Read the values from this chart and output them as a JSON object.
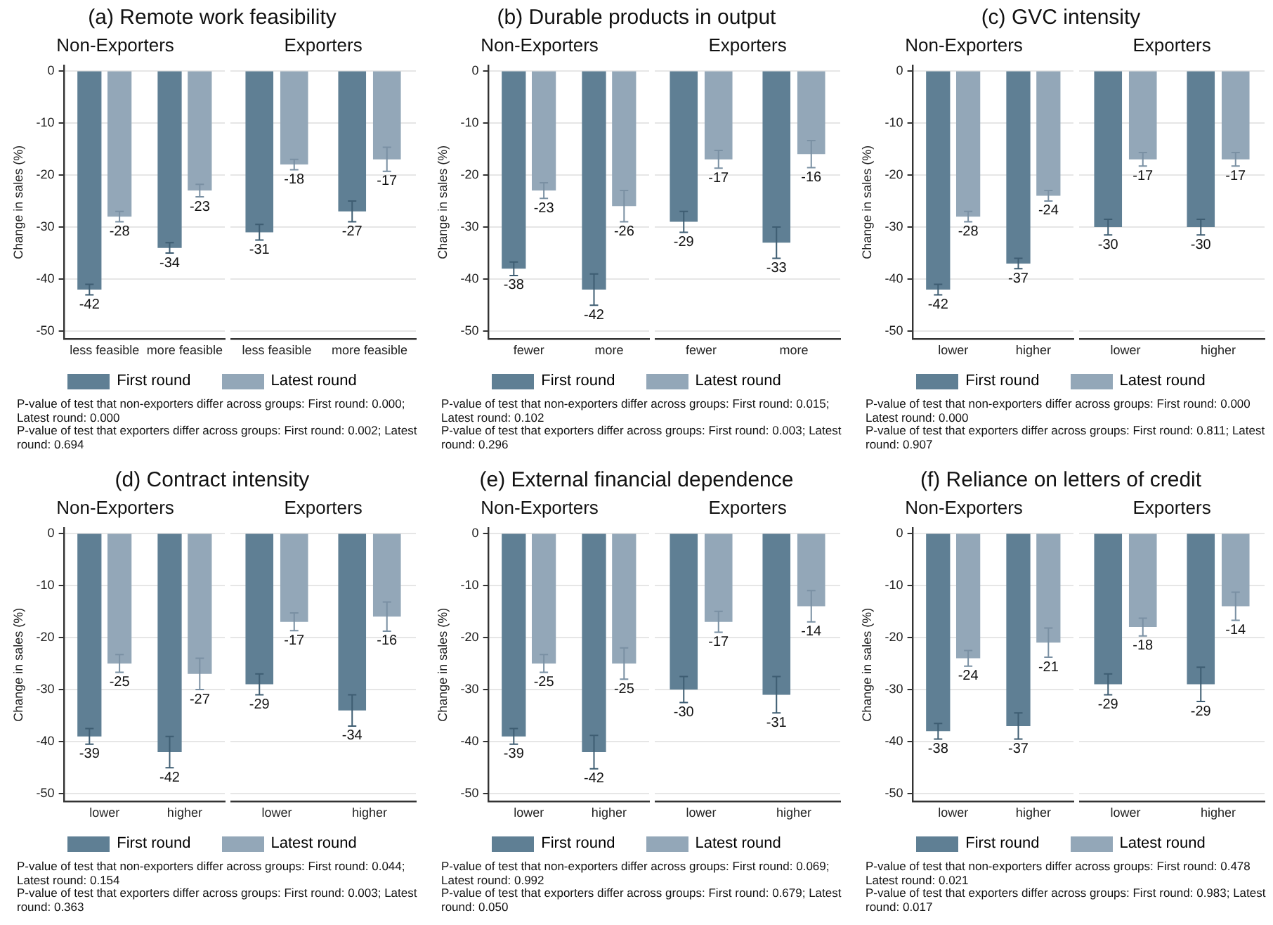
{
  "chart_data": [
    {
      "type": "bar",
      "title": "(a) Remote work feasibility",
      "subtitle": "Non-Exporters",
      "ylabel": "Change in sales (%)",
      "categories": [
        "less feasible",
        "more feasible"
      ],
      "ylim": [
        -51.5,
        1
      ],
      "yticks": [
        0,
        -10,
        -20,
        -30,
        -40,
        -50
      ],
      "grid": "y",
      "legend": "bottom",
      "data_labels": true,
      "series": [
        {
          "name": "First round",
          "color": "#5f7f94",
          "values": [
            -42,
            -34
          ],
          "errors": [
            1,
            1
          ]
        },
        {
          "name": "Latest round",
          "color": "#93a7b8",
          "values": [
            -28,
            -23
          ],
          "errors": [
            1,
            1.2
          ]
        }
      ],
      "annotations": [
        "P-value of test that non-exporters differ across groups: First round: 0.000; Latest round: 0.000",
        "P-value of test that exporters differ across groups: First round: 0.002; Latest round: 0.694"
      ]
    },
    {
      "type": "bar",
      "subtitle": "Exporters",
      "categories": [
        "less feasible",
        "more feasible"
      ],
      "yticks": [
        0,
        -10,
        -20,
        -30,
        -40,
        -50
      ],
      "grid": "y",
      "tick_labels": "x",
      "data_labels": true,
      "series": [
        {
          "color": "#5f7f94",
          "values": [
            -31,
            -27
          ],
          "errors": [
            1.5,
            2
          ]
        },
        {
          "color": "#93a7b8",
          "values": [
            -18,
            -17
          ],
          "errors": [
            1,
            2.3
          ]
        }
      ]
    },
    {
      "type": "bar",
      "title": "(b) Durable products in output",
      "subtitle": "Non-Exporters",
      "ylabel": "Change in sales (%)",
      "categories": [
        "fewer",
        "more"
      ],
      "ylim": [
        -51.5,
        1
      ],
      "yticks": [
        0,
        -10,
        -20,
        -30,
        -40,
        -50
      ],
      "grid": "y",
      "legend": "bottom",
      "data_labels": true,
      "series": [
        {
          "name": "First round",
          "color": "#5f7f94",
          "values": [
            -38,
            -42
          ],
          "errors": [
            1.3,
            3
          ]
        },
        {
          "name": "Latest round",
          "color": "#93a7b8",
          "values": [
            -23,
            -26
          ],
          "errors": [
            1.5,
            3
          ]
        }
      ],
      "annotations": [
        "P-value of test that non-exporters differ across groups: First round: 0.015; Latest round: 0.102",
        "P-value of test that exporters differ across groups: First round: 0.003; Latest round: 0.296"
      ]
    },
    {
      "type": "bar",
      "subtitle": "Exporters",
      "categories": [
        "fewer",
        "more"
      ],
      "yticks": [
        0,
        -10,
        -20,
        -30,
        -40,
        -50
      ],
      "grid": "y",
      "tick_labels": "x",
      "data_labels": true,
      "series": [
        {
          "color": "#5f7f94",
          "values": [
            -29,
            -33
          ],
          "errors": [
            2,
            3
          ]
        },
        {
          "color": "#93a7b8",
          "values": [
            -17,
            -16
          ],
          "errors": [
            1.7,
            2.6
          ]
        }
      ]
    },
    {
      "type": "bar",
      "title": "(c) GVC intensity",
      "subtitle": "Non-Exporters",
      "ylabel": "Change in sales (%)",
      "categories": [
        "lower",
        "higher"
      ],
      "ylim": [
        -51.5,
        1
      ],
      "yticks": [
        0,
        -10,
        -20,
        -30,
        -40,
        -50
      ],
      "grid": "y",
      "legend": "bottom",
      "data_labels": true,
      "series": [
        {
          "name": "First round",
          "color": "#5f7f94",
          "values": [
            -42,
            -37
          ],
          "errors": [
            1,
            1
          ]
        },
        {
          "name": "Latest round",
          "color": "#93a7b8",
          "values": [
            -28,
            -24
          ],
          "errors": [
            1,
            1
          ]
        }
      ],
      "annotations": [
        "P-value of test that non-exporters differ across groups: First round: 0.000 Latest round: 0.000",
        "P-value of test that exporters differ across groups: First round: 0.811; Latest round: 0.907"
      ]
    },
    {
      "type": "bar",
      "subtitle": "Exporters",
      "categories": [
        "lower",
        "higher"
      ],
      "yticks": [
        0,
        -10,
        -20,
        -30,
        -40,
        -50
      ],
      "grid": "y",
      "tick_labels": "x",
      "data_labels": true,
      "series": [
        {
          "color": "#5f7f94",
          "values": [
            -30,
            -30
          ],
          "errors": [
            1.5,
            1.5
          ]
        },
        {
          "color": "#93a7b8",
          "values": [
            -17,
            -17
          ],
          "errors": [
            1.3,
            1.3
          ]
        }
      ]
    },
    {
      "type": "bar",
      "title": "(d) Contract intensity",
      "subtitle": "Non-Exporters",
      "ylabel": "Change in sales (%)",
      "categories": [
        "lower",
        "higher"
      ],
      "ylim": [
        -51.5,
        1
      ],
      "yticks": [
        0,
        -10,
        -20,
        -30,
        -40,
        -50
      ],
      "grid": "y",
      "legend": "bottom",
      "data_labels": true,
      "series": [
        {
          "name": "First round",
          "color": "#5f7f94",
          "values": [
            -39,
            -42
          ],
          "errors": [
            1.5,
            3
          ]
        },
        {
          "name": "Latest round",
          "color": "#93a7b8",
          "values": [
            -25,
            -27
          ],
          "errors": [
            1.7,
            3
          ]
        }
      ],
      "annotations": [
        "P-value of test that non-exporters differ across groups: First round: 0.044; Latest round: 0.154",
        "P-value of test that exporters differ across groups: First round: 0.003; Latest round: 0.363"
      ]
    },
    {
      "type": "bar",
      "subtitle": "Exporters",
      "categories": [
        "lower",
        "higher"
      ],
      "yticks": [
        0,
        -10,
        -20,
        -30,
        -40,
        -50
      ],
      "grid": "y",
      "tick_labels": "x",
      "data_labels": true,
      "series": [
        {
          "color": "#5f7f94",
          "values": [
            -29,
            -34
          ],
          "errors": [
            2,
            3
          ]
        },
        {
          "color": "#93a7b8",
          "values": [
            -17,
            -16
          ],
          "errors": [
            1.7,
            2.8
          ]
        }
      ]
    },
    {
      "type": "bar",
      "title": "(e) External financial dependence",
      "subtitle": "Non-Exporters",
      "ylabel": "Change in sales (%)",
      "categories": [
        "lower",
        "higher"
      ],
      "ylim": [
        -51.5,
        1
      ],
      "yticks": [
        0,
        -10,
        -20,
        -30,
        -40,
        -50
      ],
      "grid": "y",
      "legend": "bottom",
      "data_labels": true,
      "series": [
        {
          "name": "First round",
          "color": "#5f7f94",
          "values": [
            -39,
            -42
          ],
          "errors": [
            1.5,
            3.2
          ]
        },
        {
          "name": "Latest round",
          "color": "#93a7b8",
          "values": [
            -25,
            -25
          ],
          "errors": [
            1.7,
            3
          ]
        }
      ],
      "annotations": [
        "P-value of test that non-exporters differ across groups: First round: 0.069; Latest round: 0.992",
        "P-value of test that exporters differ across groups: First round: 0.679; Latest round: 0.050"
      ]
    },
    {
      "type": "bar",
      "subtitle": "Exporters",
      "categories": [
        "lower",
        "higher"
      ],
      "yticks": [
        0,
        -10,
        -20,
        -30,
        -40,
        -50
      ],
      "grid": "y",
      "tick_labels": "x",
      "data_labels": true,
      "series": [
        {
          "color": "#5f7f94",
          "values": [
            -30,
            -31
          ],
          "errors": [
            2.5,
            3.5
          ]
        },
        {
          "color": "#93a7b8",
          "values": [
            -17,
            -14
          ],
          "errors": [
            2,
            3
          ]
        }
      ]
    },
    {
      "type": "bar",
      "title": "(f) Reliance on letters of credit",
      "subtitle": "Non-Exporters",
      "ylabel": "Change in sales (%)",
      "categories": [
        "lower",
        "higher"
      ],
      "ylim": [
        -51.5,
        1
      ],
      "yticks": [
        0,
        -10,
        -20,
        -30,
        -40,
        -50
      ],
      "grid": "y",
      "legend": "bottom",
      "data_labels": true,
      "series": [
        {
          "name": "First round",
          "color": "#5f7f94",
          "values": [
            -38,
            -37
          ],
          "errors": [
            1.5,
            2.5
          ]
        },
        {
          "name": "Latest round",
          "color": "#93a7b8",
          "values": [
            -24,
            -21
          ],
          "errors": [
            1.5,
            2.8
          ]
        }
      ],
      "annotations": [
        "P-value of test that non-exporters differ across groups: First round: 0.478 Latest round: 0.021",
        "P-value of test that exporters differ across groups: First round: 0.983; Latest round: 0.017"
      ]
    },
    {
      "type": "bar",
      "subtitle": "Exporters",
      "categories": [
        "lower",
        "higher"
      ],
      "yticks": [
        0,
        -10,
        -20,
        -30,
        -40,
        -50
      ],
      "grid": "y",
      "tick_labels": "x",
      "data_labels": true,
      "series": [
        {
          "color": "#5f7f94",
          "values": [
            -29,
            -29
          ],
          "errors": [
            2,
            3.3
          ]
        },
        {
          "color": "#93a7b8",
          "values": [
            -18,
            -14
          ],
          "errors": [
            1.7,
            2.7
          ]
        }
      ]
    }
  ]
}
